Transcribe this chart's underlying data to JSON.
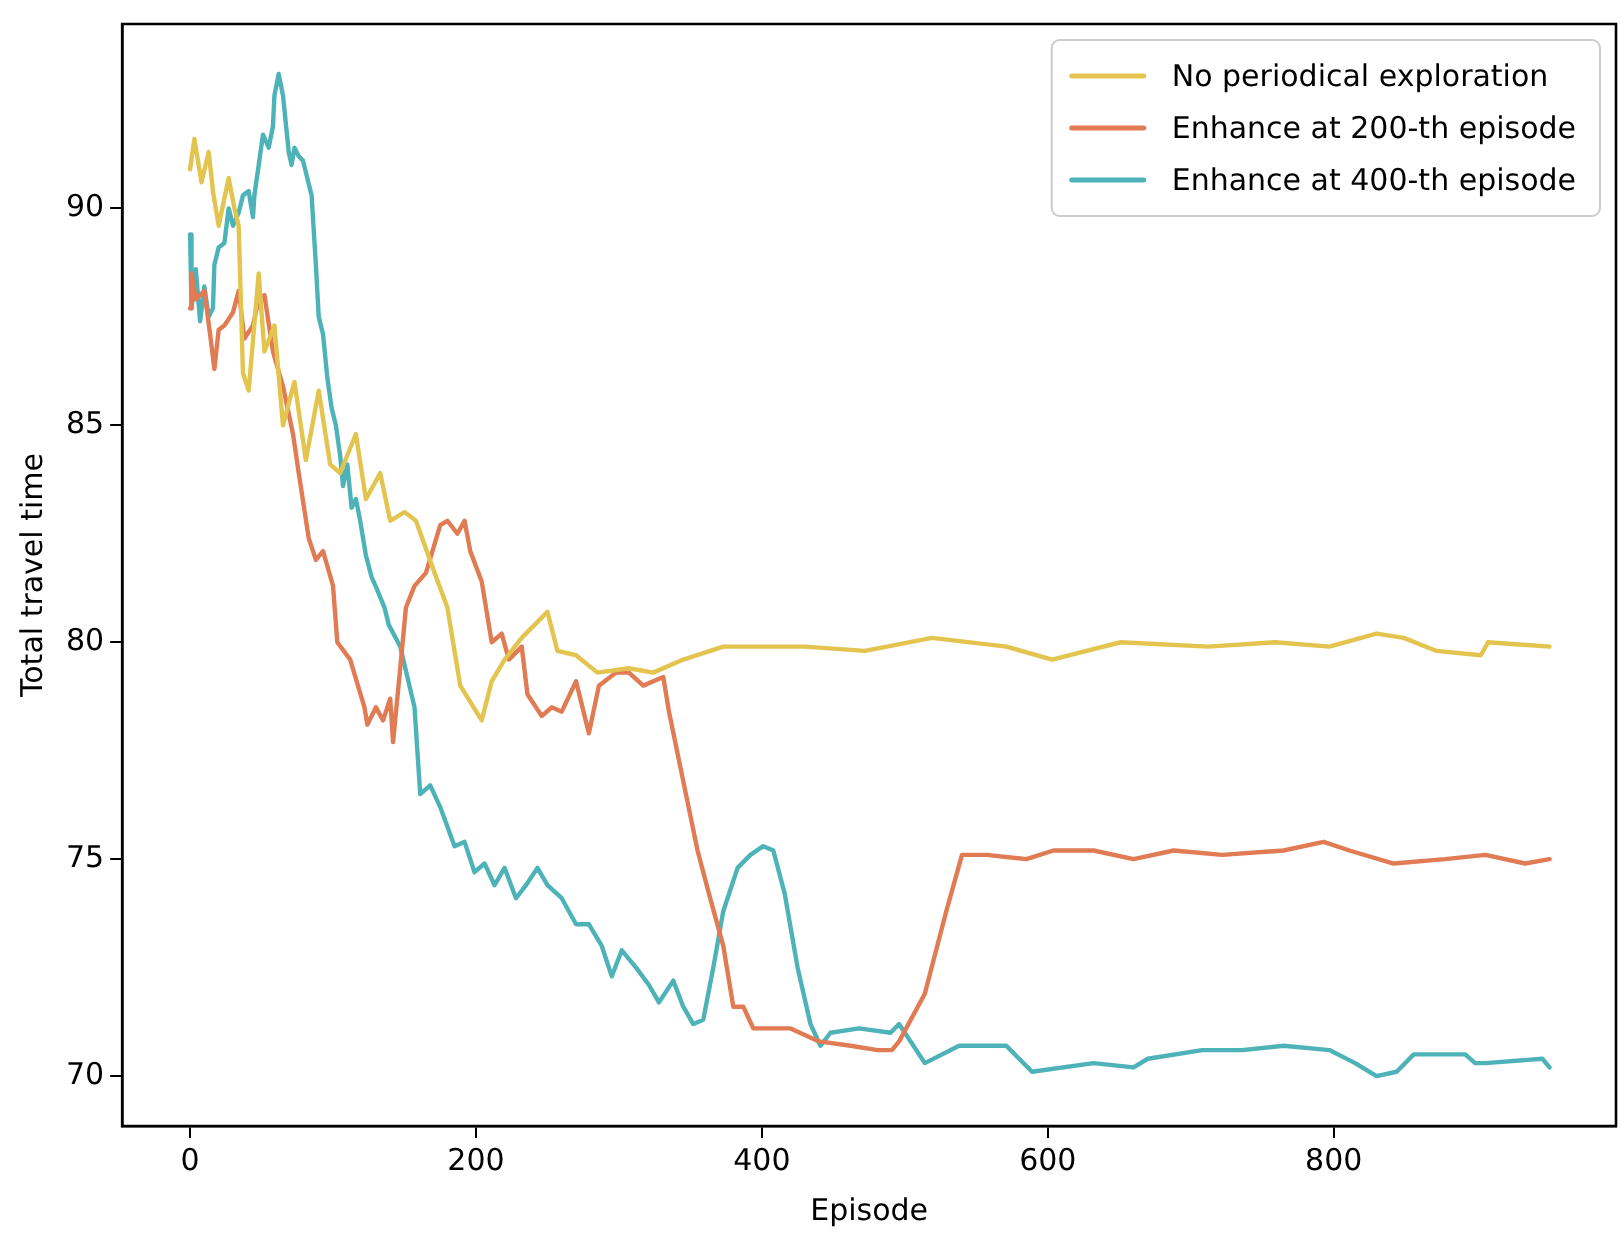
{
  "chart_data": {
    "type": "line",
    "xlabel": "Episode",
    "ylabel": "Total travel time",
    "xlim": [
      -47.5,
      997.5
    ],
    "xticks": [
      0,
      200,
      400,
      600,
      800
    ],
    "ylim": [
      68.85,
      94.25
    ],
    "yticks": [
      70,
      75,
      80,
      85,
      90
    ],
    "grid": false,
    "legend": "top right",
    "marker": "none",
    "line_style": "solid",
    "series": [
      {
        "name": "No periodical exploration",
        "color": "#e3c44f",
        "x": [
          0,
          3,
          8,
          13,
          16,
          20,
          27,
          31,
          34,
          37,
          41,
          48,
          52,
          59,
          65,
          73,
          81,
          90,
          98,
          105,
          116,
          123,
          133,
          140,
          150,
          158,
          171,
          180,
          189,
          204,
          211,
          220,
          232,
          250,
          257,
          270,
          285,
          307,
          324,
          345,
          373,
          430,
          472,
          519,
          571,
          603,
          651,
          712,
          759,
          797,
          830,
          849,
          872,
          903,
          908,
          951
        ],
        "values": [
          90.9,
          91.6,
          90.6,
          91.3,
          90.4,
          89.6,
          90.7,
          90.0,
          89.6,
          86.2,
          85.8,
          88.5,
          86.7,
          87.3,
          85.0,
          86.0,
          84.2,
          85.8,
          84.1,
          83.9,
          84.8,
          83.3,
          83.9,
          82.8,
          83.0,
          82.8,
          81.6,
          80.8,
          79.0,
          78.2,
          79.1,
          79.6,
          80.1,
          80.7,
          79.8,
          79.7,
          79.3,
          79.4,
          79.3,
          79.6,
          79.9,
          79.9,
          79.8,
          80.1,
          79.9,
          79.6,
          80.0,
          79.9,
          80.0,
          79.9,
          80.2,
          80.1,
          79.8,
          79.7,
          80.0,
          79.9
        ]
      },
      {
        "name": "Enhance at 200-th episode",
        "color": "#e07b54",
        "x": [
          0,
          1,
          4,
          10,
          14,
          17,
          20,
          24,
          30,
          34,
          38,
          44,
          48,
          52,
          58,
          65,
          72,
          76,
          83,
          88,
          93,
          100,
          103,
          112,
          122,
          124,
          130,
          135,
          140,
          142,
          147,
          151,
          157,
          165,
          175,
          180,
          187,
          192,
          196,
          204,
          211,
          218,
          223,
          232,
          236,
          246,
          253,
          260,
          270,
          279,
          286,
          298,
          307,
          317,
          331,
          335,
          345,
          355,
          363,
          373,
          380,
          387,
          394,
          406,
          420,
          440,
          462,
          481,
          491,
          496,
          514,
          529,
          540,
          557,
          585,
          604,
          632,
          660,
          688,
          722,
          765,
          793,
          811,
          842,
          878,
          906,
          934,
          951
        ],
        "values": [
          87.7,
          88.5,
          87.9,
          88.1,
          87.1,
          86.3,
          87.2,
          87.3,
          87.6,
          88.1,
          87.0,
          87.3,
          87.9,
          88.0,
          86.7,
          85.9,
          84.8,
          83.9,
          82.4,
          81.9,
          82.1,
          81.3,
          80.0,
          79.6,
          78.5,
          78.1,
          78.5,
          78.2,
          78.7,
          77.7,
          79.4,
          80.8,
          81.3,
          81.6,
          82.7,
          82.8,
          82.5,
          82.8,
          82.1,
          81.4,
          80.0,
          80.2,
          79.6,
          79.9,
          78.8,
          78.3,
          78.5,
          78.4,
          79.1,
          77.9,
          79.0,
          79.3,
          79.3,
          79.0,
          79.2,
          78.4,
          76.8,
          75.2,
          74.2,
          73.0,
          71.6,
          71.6,
          71.1,
          71.1,
          71.1,
          70.8,
          70.7,
          70.6,
          70.6,
          70.8,
          71.9,
          73.8,
          75.1,
          75.1,
          75.0,
          75.2,
          75.2,
          75.0,
          75.2,
          75.1,
          75.2,
          75.4,
          75.2,
          74.9,
          75.0,
          75.1,
          74.9,
          75.0
        ]
      },
      {
        "name": "Enhance at 400-th episode",
        "color": "#4eb3b8",
        "x": [
          0,
          1,
          4,
          7,
          10,
          13,
          16,
          17,
          20,
          24,
          27,
          30,
          34,
          37,
          41,
          44,
          45,
          48,
          51,
          55,
          58,
          59,
          62,
          65,
          69,
          71,
          73,
          76,
          79,
          82,
          85,
          88,
          90,
          93,
          96,
          99,
          102,
          105,
          107,
          110,
          113,
          116,
          119,
          123,
          127,
          131,
          136,
          139,
          147,
          157,
          161,
          168,
          175,
          185,
          192,
          199,
          206,
          213,
          220,
          228,
          235,
          243,
          250,
          260,
          270,
          279,
          288,
          295,
          302,
          312,
          321,
          328,
          338,
          345,
          352,
          359,
          366,
          373,
          383,
          392,
          401,
          408,
          416,
          425,
          434,
          441,
          448,
          468,
          490,
          496,
          514,
          538,
          571,
          589,
          632,
          660,
          670,
          708,
          736,
          765,
          797,
          815,
          830,
          844,
          856,
          892,
          899,
          906,
          946,
          951
        ],
        "values": [
          89.4,
          87.7,
          88.6,
          87.4,
          88.2,
          87.5,
          87.7,
          88.7,
          89.1,
          89.2,
          90.0,
          89.6,
          89.9,
          90.3,
          90.4,
          89.8,
          90.3,
          91.0,
          91.7,
          91.4,
          91.9,
          92.6,
          93.1,
          92.6,
          91.3,
          91.0,
          91.4,
          91.2,
          91.1,
          90.7,
          90.3,
          88.7,
          87.5,
          87.1,
          86.1,
          85.4,
          85.0,
          84.3,
          83.6,
          84.1,
          83.1,
          83.3,
          82.8,
          82.0,
          81.5,
          81.2,
          80.8,
          80.4,
          79.9,
          78.5,
          76.5,
          76.7,
          76.2,
          75.3,
          75.4,
          74.7,
          74.9,
          74.4,
          74.8,
          74.1,
          74.4,
          74.8,
          74.4,
          74.1,
          73.5,
          73.5,
          73.0,
          72.3,
          72.9,
          72.5,
          72.1,
          71.7,
          72.2,
          71.6,
          71.2,
          71.3,
          72.5,
          73.8,
          74.8,
          75.1,
          75.3,
          75.2,
          74.2,
          72.5,
          71.2,
          70.7,
          71.0,
          71.1,
          71.0,
          71.2,
          70.3,
          70.7,
          70.7,
          70.1,
          70.3,
          70.2,
          70.4,
          70.6,
          70.6,
          70.7,
          70.6,
          70.3,
          70.0,
          70.1,
          70.5,
          70.5,
          70.3,
          70.3,
          70.4,
          70.2
        ]
      }
    ]
  }
}
